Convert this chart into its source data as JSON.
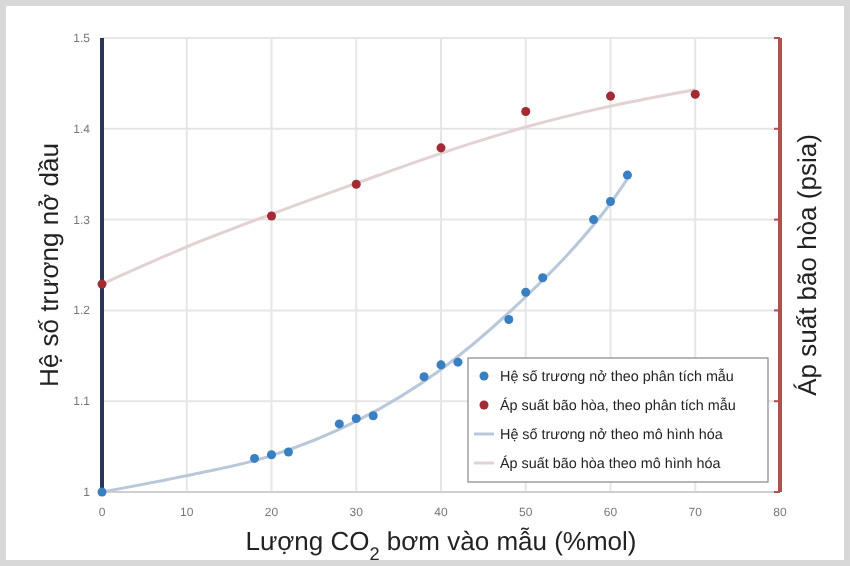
{
  "chart_data": {
    "type": "scatter",
    "xlabel": "Lượng CO$_{2}$ bơm vào mẫu (%mol)",
    "ylabel": "Hệ số trương nở dầu",
    "y2label": "Áp suất bão hòa (psia)",
    "xlim": [
      0,
      80
    ],
    "xticks": [
      0,
      10,
      20,
      30,
      40,
      50,
      60,
      70,
      80
    ],
    "ylim": [
      1,
      1.5
    ],
    "yticks": [
      1,
      1.1,
      1.2,
      1.3,
      1.4,
      1.5
    ],
    "grid": true,
    "legend": "bottom right",
    "series": [
      {
        "name": "Hệ số trương nở theo phân tích mẫu",
        "marker": "circle",
        "color": "#3a7fc1",
        "x": [
          0,
          18,
          20,
          22,
          28,
          30,
          32,
          38,
          40,
          42,
          48,
          50,
          52,
          58,
          60,
          62
        ],
        "values": [
          1.0,
          1.037,
          1.041,
          1.044,
          1.075,
          1.081,
          1.084,
          1.127,
          1.14,
          1.143,
          1.19,
          1.22,
          1.236,
          1.3,
          1.32,
          1.349
        ]
      },
      {
        "name": "Áp suất bão hòa, theo phân tích mẫu",
        "marker": "circle",
        "color": "#a32b35",
        "x": [
          0,
          20,
          30,
          40,
          50,
          60,
          70
        ],
        "values": [
          1.229,
          1.304,
          1.339,
          1.379,
          1.419,
          1.436,
          1.438
        ]
      },
      {
        "name": "Hệ số trương nở theo mô hình hóa",
        "type": "line",
        "marker": "none",
        "color": "#b8c8da",
        "x": [
          0,
          10,
          20,
          30,
          40,
          50,
          55,
          60,
          62
        ],
        "values": [
          1.0,
          1.018,
          1.04,
          1.078,
          1.135,
          1.215,
          1.262,
          1.318,
          1.345
        ]
      },
      {
        "name": "Áp suất bão hòa theo mô hình hóa",
        "type": "line",
        "marker": "none",
        "color": "#e2d2d2",
        "x": [
          0,
          10,
          20,
          30,
          40,
          50,
          60,
          70
        ],
        "values": [
          1.229,
          1.27,
          1.306,
          1.34,
          1.373,
          1.402,
          1.425,
          1.443
        ]
      }
    ]
  }
}
